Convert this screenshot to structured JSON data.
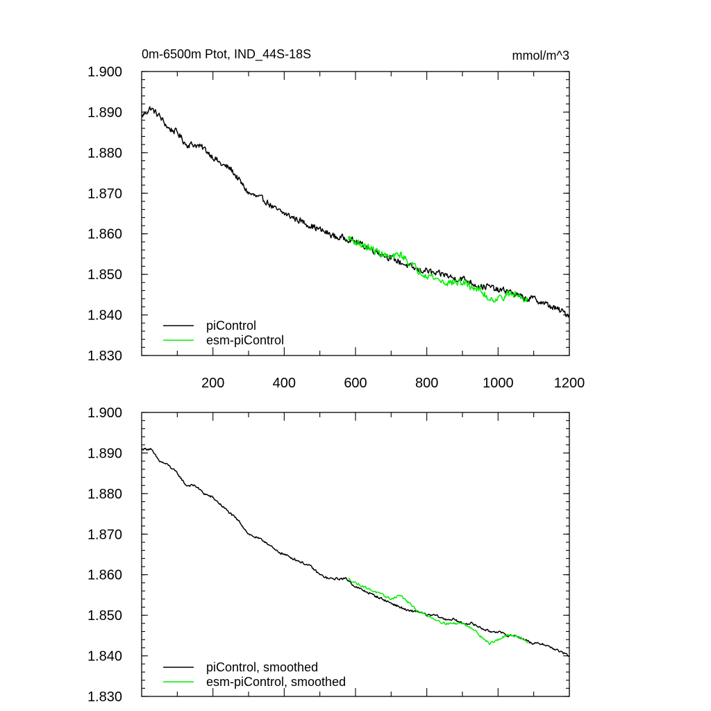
{
  "chart_data": [
    {
      "type": "line",
      "title": "0m-6500m Ptot, IND_44S-18S",
      "units": "mmol/m^3",
      "xlim": [
        0,
        1200
      ],
      "ylim": [
        1.83,
        1.9
      ],
      "xticks": [
        "200",
        "400",
        "600",
        "800",
        "1000",
        "1200"
      ],
      "yticks": [
        "1.830",
        "1.840",
        "1.850",
        "1.860",
        "1.870",
        "1.880",
        "1.890",
        "1.900"
      ],
      "legend_position": "bottom-left",
      "series": [
        {
          "name": "piControl",
          "color": "#000000",
          "x": [
            1,
            25,
            50,
            75,
            100,
            125,
            150,
            175,
            200,
            225,
            250,
            275,
            300,
            325,
            350,
            375,
            400,
            425,
            450,
            475,
            500,
            525,
            550,
            575,
            600,
            625,
            650,
            675,
            700,
            725,
            750,
            775,
            800,
            825,
            850,
            875,
            900,
            925,
            950,
            975,
            1000,
            1025,
            1050,
            1075,
            1100,
            1125,
            1150,
            1175,
            1200
          ],
          "y": [
            1.889,
            1.891,
            1.889,
            1.886,
            1.885,
            1.882,
            1.882,
            1.881,
            1.879,
            1.877,
            1.876,
            1.873,
            1.87,
            1.869,
            1.868,
            1.866,
            1.865,
            1.864,
            1.863,
            1.862,
            1.861,
            1.86,
            1.859,
            1.859,
            1.858,
            1.857,
            1.856,
            1.855,
            1.854,
            1.853,
            1.852,
            1.851,
            1.851,
            1.85,
            1.85,
            1.849,
            1.849,
            1.848,
            1.847,
            1.847,
            1.846,
            1.846,
            1.845,
            1.844,
            1.844,
            1.843,
            1.842,
            1.841,
            1.84
          ],
          "noise": 0.0011
        },
        {
          "name": "esm-piControl",
          "color": "#00ee00",
          "x": [
            580,
            600,
            625,
            650,
            675,
            700,
            725,
            750,
            775,
            800,
            825,
            850,
            875,
            900,
            925,
            950,
            975,
            1000,
            1025,
            1050,
            1075,
            1085
          ],
          "y": [
            1.859,
            1.858,
            1.857,
            1.856,
            1.855,
            1.854,
            1.855,
            1.853,
            1.851,
            1.85,
            1.849,
            1.848,
            1.848,
            1.848,
            1.847,
            1.846,
            1.844,
            1.844,
            1.845,
            1.845,
            1.844,
            1.844
          ],
          "noise": 0.0013
        }
      ]
    },
    {
      "type": "line",
      "title": "",
      "xlim": [
        0,
        1200
      ],
      "ylim": [
        1.83,
        1.9
      ],
      "yticks": [
        "1.830",
        "1.840",
        "1.850",
        "1.860",
        "1.870",
        "1.880",
        "1.890",
        "1.900"
      ],
      "legend_position": "bottom-left",
      "series": [
        {
          "name": "piControl, smoothed",
          "color": "#000000",
          "x": [
            1,
            25,
            50,
            75,
            100,
            125,
            150,
            175,
            200,
            225,
            250,
            275,
            300,
            325,
            350,
            375,
            400,
            425,
            450,
            475,
            500,
            525,
            550,
            575,
            600,
            625,
            650,
            675,
            700,
            725,
            750,
            775,
            800,
            825,
            850,
            875,
            900,
            925,
            950,
            975,
            1000,
            1025,
            1050,
            1075,
            1100,
            1125,
            1150,
            1175,
            1200
          ],
          "y": [
            1.891,
            1.891,
            1.888,
            1.887,
            1.885,
            1.882,
            1.882,
            1.88,
            1.879,
            1.877,
            1.875,
            1.873,
            1.87,
            1.869,
            1.868,
            1.866,
            1.865,
            1.864,
            1.863,
            1.862,
            1.86,
            1.859,
            1.859,
            1.859,
            1.857,
            1.856,
            1.855,
            1.854,
            1.853,
            1.852,
            1.851,
            1.851,
            1.85,
            1.85,
            1.849,
            1.849,
            1.848,
            1.848,
            1.847,
            1.846,
            1.846,
            1.845,
            1.845,
            1.844,
            1.843,
            1.843,
            1.842,
            1.841,
            1.84
          ],
          "noise": 0.0004
        },
        {
          "name": "esm-piControl, smoothed",
          "color": "#00ee00",
          "x": [
            580,
            600,
            625,
            650,
            675,
            700,
            725,
            750,
            775,
            800,
            825,
            850,
            875,
            900,
            925,
            950,
            975,
            1000,
            1025,
            1050,
            1075,
            1085
          ],
          "y": [
            1.859,
            1.858,
            1.857,
            1.856,
            1.855,
            1.854,
            1.855,
            1.853,
            1.851,
            1.85,
            1.849,
            1.848,
            1.848,
            1.848,
            1.847,
            1.845,
            1.843,
            1.844,
            1.845,
            1.845,
            1.844,
            1.843
          ],
          "noise": 0.0004
        }
      ]
    }
  ]
}
